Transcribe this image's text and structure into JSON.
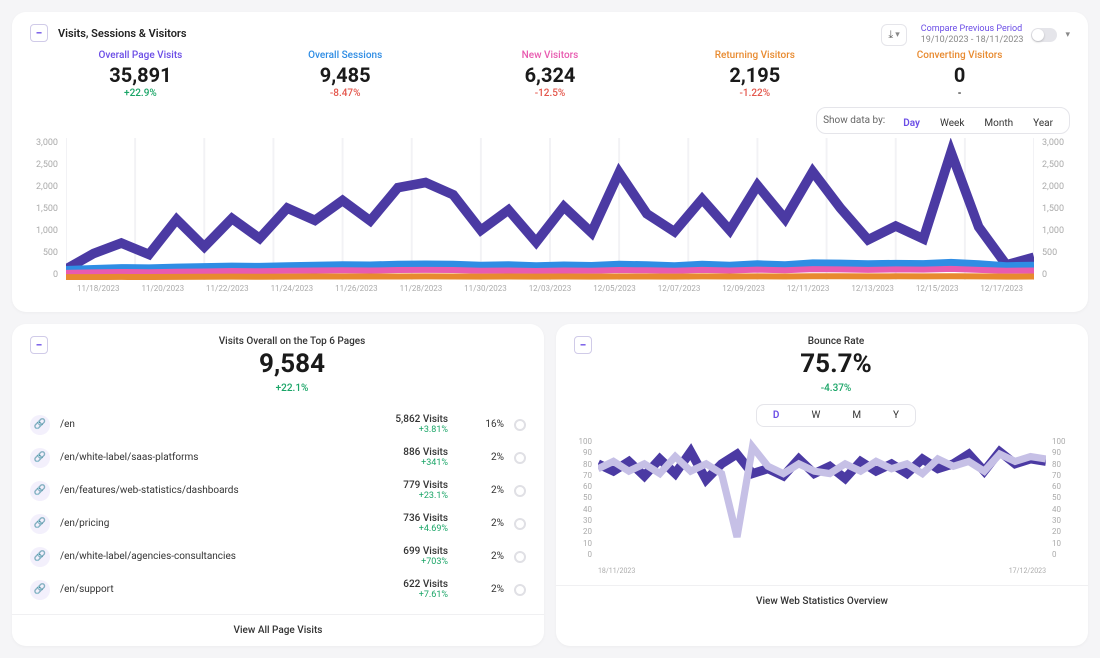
{
  "header": {
    "title": "Visits, Sessions & Visitors",
    "compare_label": "Compare Previous Period",
    "compare_range": "19/10/2023 - 18/11/2023"
  },
  "metrics": [
    {
      "label": "Overall Page Visits",
      "value": "35,891",
      "change": "+22.9%",
      "change_sign": "pos",
      "label_color": "#6b4de6"
    },
    {
      "label": "Overall Sessions",
      "value": "9,485",
      "change": "-8.47%",
      "change_sign": "neg",
      "label_color": "#2f8de4"
    },
    {
      "label": "New Visitors",
      "value": "6,324",
      "change": "-12.5%",
      "change_sign": "neg",
      "label_color": "#e85bb0"
    },
    {
      "label": "Returning Visitors",
      "value": "2,195",
      "change": "-1.22%",
      "change_sign": "neg",
      "label_color": "#e88a2f"
    },
    {
      "label": "Converting Visitors",
      "value": "0",
      "change": "-",
      "change_sign": "",
      "label_color": "#e88a2f"
    }
  ],
  "time_range": {
    "prefix": "Show data by:",
    "options": [
      "Day",
      "Week",
      "Month",
      "Year"
    ],
    "active": "Day"
  },
  "main_chart": {
    "type": "line",
    "ylim": [
      0,
      3000
    ],
    "yticks": [
      3000,
      2500,
      2000,
      1500,
      1000,
      500,
      0
    ],
    "x_labels": [
      "11/18/2023",
      "11/20/2023",
      "11/22/2023",
      "11/24/2023",
      "11/26/2023",
      "11/28/2023",
      "11/30/2023",
      "12/03/2023",
      "12/05/2023",
      "12/07/2023",
      "12/09/2023",
      "12/11/2023",
      "12/13/2023",
      "12/15/2023",
      "12/17/2023"
    ],
    "grid_color": "#f2f2f5",
    "background": "#ffffff",
    "series": [
      {
        "name": "page_visits",
        "color": "#4b3aa3",
        "width": 1.6,
        "values": [
          230,
          560,
          780,
          540,
          1280,
          700,
          1300,
          880,
          1520,
          1260,
          1680,
          1250,
          1950,
          2060,
          1800,
          1050,
          1480,
          800,
          1550,
          1000,
          2270,
          1400,
          1020,
          1710,
          1050,
          2000,
          1290,
          2290,
          1520,
          850,
          1140,
          870,
          2700,
          1120,
          320,
          480
        ]
      },
      {
        "name": "sessions",
        "color": "#2f8de4",
        "width": 1.2,
        "values": [
          220,
          240,
          260,
          255,
          270,
          280,
          290,
          285,
          300,
          310,
          320,
          315,
          330,
          335,
          330,
          310,
          320,
          300,
          315,
          305,
          330,
          320,
          300,
          330,
          310,
          340,
          320,
          360,
          355,
          340,
          350,
          345,
          370,
          340,
          300,
          310
        ]
      },
      {
        "name": "new_visitors",
        "color": "#e85bb0",
        "width": 1.0,
        "values": [
          150,
          160,
          170,
          165,
          175,
          180,
          190,
          185,
          195,
          200,
          205,
          200,
          210,
          215,
          210,
          195,
          200,
          190,
          200,
          195,
          210,
          205,
          195,
          215,
          200,
          220,
          205,
          230,
          225,
          215,
          225,
          220,
          235,
          215,
          195,
          200
        ]
      },
      {
        "name": "returning",
        "color": "#e88a2f",
        "width": 1.0,
        "values": [
          60,
          62,
          65,
          63,
          66,
          68,
          70,
          69,
          71,
          73,
          74,
          73,
          75,
          76,
          75,
          72,
          73,
          71,
          73,
          72,
          75,
          74,
          72,
          76,
          73,
          77,
          74,
          79,
          78,
          76,
          78,
          77,
          80,
          76,
          72,
          73
        ]
      }
    ]
  },
  "top_pages": {
    "title": "Visits Overall on the Top 6 Pages",
    "value": "9,584",
    "change": "+22.1%",
    "change_sign": "pos",
    "footer": "View All Page Visits",
    "rows": [
      {
        "path": "/en",
        "visits": "5,862 Visits",
        "delta": "+3.81%",
        "delta_sign": "pos",
        "pct": "16%"
      },
      {
        "path": "/en/white-label/saas-platforms",
        "visits": "886 Visits",
        "delta": "+341%",
        "delta_sign": "pos",
        "pct": "2%"
      },
      {
        "path": "/en/features/web-statistics/dashboards",
        "visits": "779 Visits",
        "delta": "+23.1%",
        "delta_sign": "pos",
        "pct": "2%"
      },
      {
        "path": "/en/pricing",
        "visits": "736 Visits",
        "delta": "+4.69%",
        "delta_sign": "pos",
        "pct": "2%"
      },
      {
        "path": "/en/white-label/agencies-consultancies",
        "visits": "699 Visits",
        "delta": "+703%",
        "delta_sign": "pos",
        "pct": "2%"
      },
      {
        "path": "/en/support",
        "visits": "622 Visits",
        "delta": "+7.61%",
        "delta_sign": "pos",
        "pct": "2%"
      }
    ]
  },
  "bounce": {
    "title": "Bounce Rate",
    "value": "75.7%",
    "change": "-4.37%",
    "change_sign": "pos",
    "footer": "View Web Statistics Overview",
    "range_options": [
      "D",
      "W",
      "M",
      "Y"
    ],
    "range_active": "D",
    "chart": {
      "type": "line",
      "ylim": [
        0,
        100
      ],
      "yticks": [
        100,
        90,
        80,
        70,
        60,
        50,
        40,
        30,
        20,
        10,
        0
      ],
      "x_start": "18/11/2023",
      "x_end": "17/12/2023",
      "series": [
        {
          "name": "current",
          "color": "#4b3aa3",
          "width": 1.5,
          "values": [
            78,
            72,
            80,
            68,
            82,
            70,
            88,
            65,
            78,
            86,
            70,
            74,
            68,
            82,
            70,
            76,
            66,
            80,
            72,
            78,
            70,
            82,
            74,
            78,
            86,
            72,
            88,
            78,
            82,
            80
          ]
        },
        {
          "name": "previous",
          "color": "#c6c0e6",
          "width": 1.2,
          "values": [
            74,
            80,
            72,
            78,
            70,
            84,
            72,
            78,
            70,
            18,
            92,
            76,
            70,
            78,
            72,
            70,
            78,
            72,
            80,
            74,
            78,
            70,
            82,
            76,
            80,
            72,
            86,
            80,
            84,
            82
          ]
        }
      ]
    }
  }
}
